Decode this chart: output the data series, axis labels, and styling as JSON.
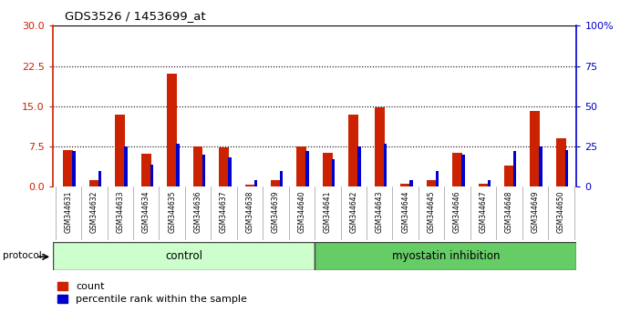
{
  "title": "GDS3526 / 1453699_at",
  "samples": [
    "GSM344631",
    "GSM344632",
    "GSM344633",
    "GSM344634",
    "GSM344635",
    "GSM344636",
    "GSM344637",
    "GSM344638",
    "GSM344639",
    "GSM344640",
    "GSM344641",
    "GSM344642",
    "GSM344643",
    "GSM344644",
    "GSM344645",
    "GSM344646",
    "GSM344647",
    "GSM344648",
    "GSM344649",
    "GSM344650"
  ],
  "count": [
    6.8,
    1.2,
    13.5,
    6.2,
    21.0,
    7.5,
    7.3,
    0.4,
    1.2,
    7.5,
    6.3,
    13.5,
    14.8,
    0.5,
    1.2,
    6.3,
    0.5,
    4.0,
    14.2,
    9.0
  ],
  "percentile": [
    22.0,
    10.0,
    25.0,
    14.0,
    27.0,
    20.0,
    18.0,
    4.0,
    10.0,
    22.0,
    17.0,
    25.0,
    27.0,
    4.0,
    10.0,
    20.0,
    4.0,
    22.0,
    25.0,
    23.0
  ],
  "control_count": 10,
  "protocol_labels": [
    "control",
    "myostatin inhibition"
  ],
  "protocol_color_light": "#ccffcc",
  "protocol_color_dark": "#66cc66",
  "y_left_ticks": [
    0,
    7.5,
    15,
    22.5,
    30
  ],
  "y_right_ticks": [
    0,
    25,
    50,
    75,
    100
  ],
  "y_right_labels": [
    "0",
    "25",
    "50",
    "75",
    "100%"
  ],
  "bar_color_red": "#cc2200",
  "bar_color_blue": "#0000cc",
  "legend_red": "count",
  "legend_blue": "percentile rank within the sample",
  "xlabels_bg": "#c8c8c8"
}
